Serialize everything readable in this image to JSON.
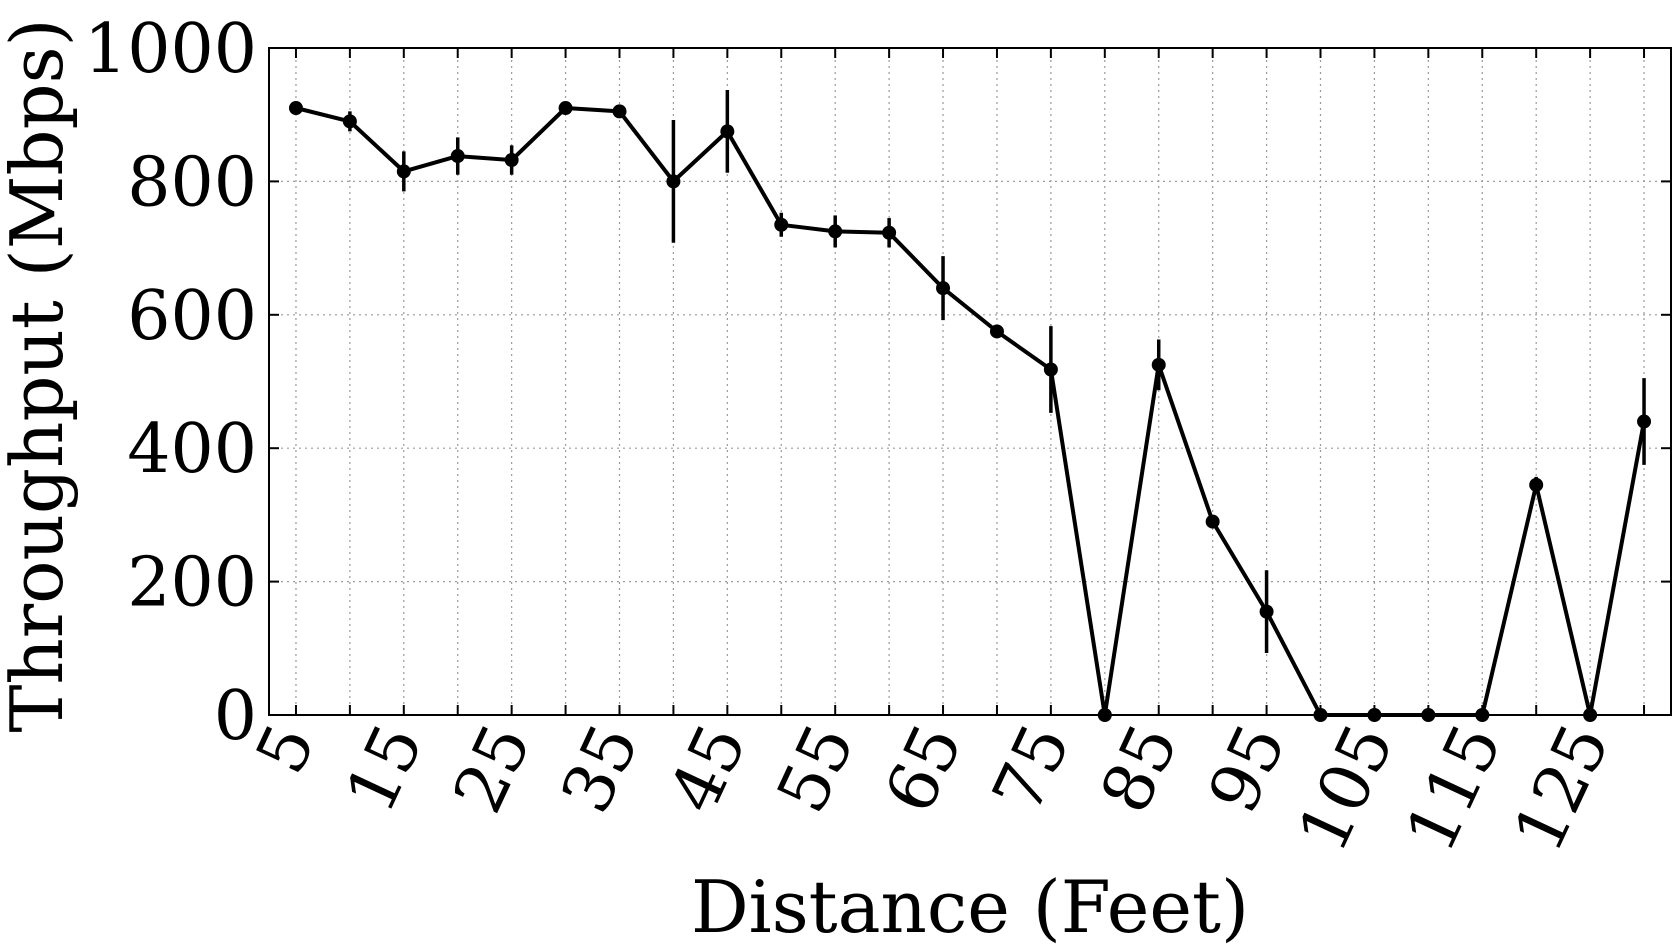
{
  "chart_data": {
    "type": "line",
    "title": "",
    "xlabel": "Distance (Feet)",
    "ylabel": "Throughput (Mbps)",
    "xlim": [
      2.5,
      132.5
    ],
    "ylim": [
      0,
      1000
    ],
    "grid": true,
    "x": [
      5,
      10,
      15,
      20,
      25,
      30,
      35,
      40,
      45,
      50,
      55,
      60,
      65,
      70,
      75,
      80,
      85,
      90,
      95,
      100,
      105,
      110,
      115,
      120,
      125,
      130
    ],
    "x_tick_values": [
      5,
      15,
      25,
      35,
      45,
      55,
      65,
      75,
      85,
      95,
      105,
      115,
      125
    ],
    "x_tick_labels": [
      "5",
      "15",
      "25",
      "35",
      "45",
      "55",
      "65",
      "75",
      "85",
      "95",
      "105",
      "115",
      "125"
    ],
    "y_tick_values": [
      0,
      200,
      400,
      600,
      800,
      1000
    ],
    "y_tick_labels": [
      "0",
      "200",
      "400",
      "600",
      "800",
      "1000"
    ],
    "series": [
      {
        "values": [
          910,
          890,
          815,
          838,
          832,
          910,
          905,
          800,
          875,
          735,
          725,
          723,
          640,
          575,
          518,
          0,
          525,
          290,
          155,
          0,
          0,
          0,
          0,
          345,
          0,
          440
        ],
        "errors": [
          10,
          15,
          30,
          28,
          22,
          5,
          5,
          92,
          62,
          18,
          24,
          22,
          48,
          8,
          65,
          0,
          38,
          10,
          62,
          0,
          0,
          0,
          0,
          12,
          0,
          65
        ],
        "color": "#000000",
        "marker": "circle"
      }
    ]
  }
}
